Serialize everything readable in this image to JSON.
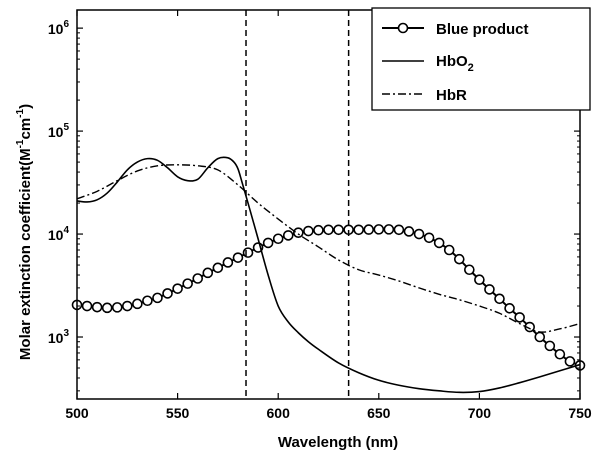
{
  "chart_data": {
    "type": "line",
    "xlabel": "Wavelength (nm)",
    "ylabel": {
      "text": "Molar extinction coefficient(M",
      "sup1": "-1",
      "mid": "cm",
      "sup2": "-1",
      "end": ")"
    },
    "xlim": [
      500,
      750
    ],
    "ylim": [
      250,
      1500000
    ],
    "yscale": "log",
    "x_ticks": [
      500,
      550,
      600,
      650,
      700,
      750
    ],
    "x_tick_labels": [
      "500",
      "550",
      "600",
      "650",
      "700",
      "750"
    ],
    "y_ticks": [
      1000,
      10000,
      100000,
      1000000
    ],
    "y_tick_labels": [
      {
        "base": "10",
        "exp": "3"
      },
      {
        "base": "10",
        "exp": "4"
      },
      {
        "base": "10",
        "exp": "5"
      },
      {
        "base": "10",
        "exp": "6"
      }
    ],
    "vertical_lines": [
      584,
      635
    ],
    "legend_position": "top-right",
    "series": [
      {
        "name": "Blue product",
        "legend_label": {
          "text": "Blue product"
        },
        "style": "solid-circle",
        "x": [
          500,
          505,
          510,
          515,
          520,
          525,
          530,
          535,
          540,
          545,
          550,
          555,
          560,
          565,
          570,
          575,
          580,
          585,
          590,
          595,
          600,
          605,
          610,
          615,
          620,
          625,
          630,
          635,
          640,
          645,
          650,
          655,
          660,
          665,
          670,
          675,
          680,
          685,
          690,
          695,
          700,
          705,
          710,
          715,
          720,
          725,
          730,
          735,
          740,
          745,
          750
        ],
        "y": [
          2050,
          2000,
          1950,
          1920,
          1940,
          2000,
          2100,
          2250,
          2400,
          2650,
          2950,
          3300,
          3700,
          4200,
          4700,
          5300,
          5900,
          6600,
          7400,
          8200,
          9000,
          9700,
          10300,
          10700,
          10900,
          11000,
          11000,
          11000,
          11000,
          11050,
          11100,
          11100,
          11000,
          10600,
          10000,
          9200,
          8200,
          7000,
          5700,
          4500,
          3600,
          2900,
          2350,
          1900,
          1550,
          1250,
          1000,
          820,
          680,
          580,
          530
        ]
      },
      {
        "name": "HbO2",
        "legend_label": {
          "text": "HbO",
          "sub": "2"
        },
        "style": "solid",
        "x": [
          500,
          505,
          510,
          515,
          520,
          525,
          530,
          535,
          540,
          545,
          550,
          555,
          560,
          565,
          570,
          575,
          578,
          580,
          582,
          585,
          590,
          595,
          600,
          605,
          610,
          615,
          620,
          630,
          640,
          650,
          660,
          670,
          680,
          690,
          700,
          710,
          720,
          730,
          740,
          750
        ],
        "y": [
          21000,
          20500,
          21500,
          25000,
          32000,
          42000,
          50000,
          54000,
          52000,
          44000,
          36000,
          33000,
          34000,
          44000,
          54000,
          55000,
          50000,
          43000,
          32000,
          20000,
          9000,
          4000,
          2000,
          1400,
          1100,
          900,
          760,
          560,
          450,
          380,
          340,
          315,
          300,
          290,
          295,
          320,
          360,
          410,
          470,
          540
        ]
      },
      {
        "name": "HbR",
        "legend_label": {
          "text": "HbR"
        },
        "style": "dash-dot",
        "x": [
          500,
          510,
          520,
          530,
          540,
          550,
          560,
          570,
          580,
          590,
          600,
          610,
          620,
          630,
          640,
          650,
          660,
          670,
          680,
          690,
          700,
          710,
          720,
          730,
          740,
          750
        ],
        "y": [
          22000,
          26000,
          33000,
          41000,
          46000,
          47000,
          46000,
          42000,
          30000,
          20000,
          14000,
          10000,
          7500,
          5600,
          4500,
          4000,
          3500,
          3000,
          2600,
          2300,
          2000,
          1700,
          1350,
          1120,
          1200,
          1350
        ]
      }
    ]
  }
}
